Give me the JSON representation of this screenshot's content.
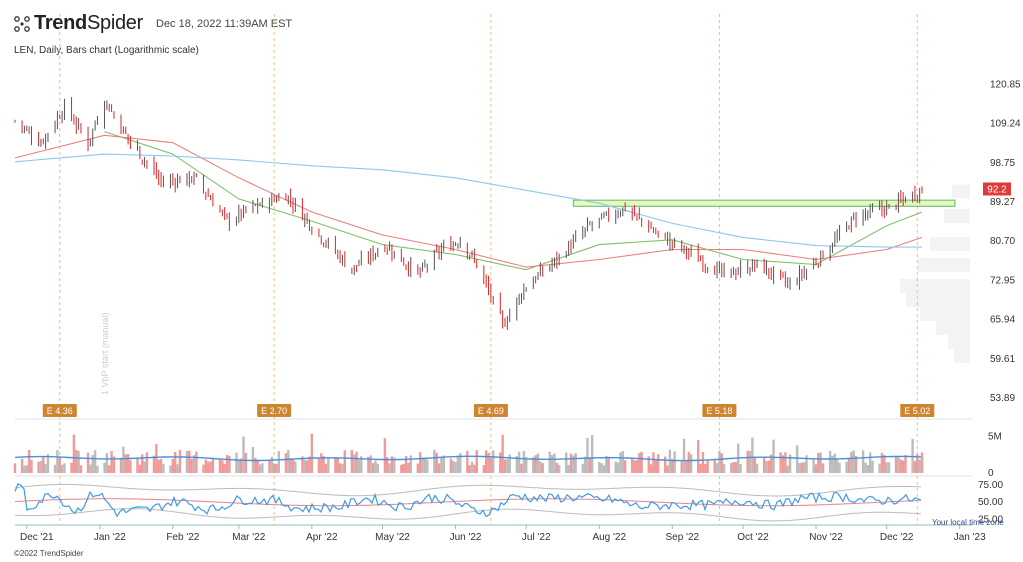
{
  "header": {
    "brand_bold": "Trend",
    "brand_light": "Spider",
    "timestamp": "Dec 18, 2022 11:39AM EST",
    "description": "LEN, Daily, Bars chart (Logarithmic scale)"
  },
  "footer": {
    "copyright": "©2022 TrendSpider",
    "local_time_note": "Your local time zone"
  },
  "colors": {
    "up": "#555555",
    "down": "#d62728",
    "sma_short": "#7fbf6a",
    "sma_mid": "#e88080",
    "sma_long": "#8cc8ee",
    "volume_up": "#bcbcbc",
    "volume_down": "#f09a9a",
    "volume_avg": "#4a90d9",
    "zone_fill": "#e9f7b8",
    "zone_border": "#55b87a",
    "earnings_badge": "#cd8530",
    "price_label": "#e03a3a"
  },
  "chart_data": {
    "type": "bar",
    "ticker": "LEN",
    "interval": "Daily",
    "scale": "log",
    "price_axis_ticks": [
      "120.85",
      "109.24",
      "98.75",
      "89.27",
      "80.70",
      "72.95",
      "65.94",
      "59.61",
      "53.89"
    ],
    "price_axis_values": [
      120.85,
      109.24,
      98.75,
      89.27,
      80.7,
      72.95,
      65.94,
      59.61,
      53.89
    ],
    "ylim": [
      52.0,
      128.0
    ],
    "last_price": "92.2",
    "months": [
      "Dec '21",
      "Jan '22",
      "Feb '22",
      "Mar '22",
      "Apr '22",
      "May '22",
      "Jun '22",
      "Jul '22",
      "Aug '22",
      "Sep '22",
      "Oct '22",
      "Nov '22",
      "Dec '22",
      "Jan '23"
    ],
    "price_path": [
      {
        "t": "Nov 26, 2021",
        "close": 110
      },
      {
        "t": "Dec 7, 2021",
        "close": 104
      },
      {
        "t": "Dec 17, 2021",
        "close": 114
      },
      {
        "t": "Dec 27, 2021",
        "close": 104
      },
      {
        "t": "Jan 3, 2022",
        "close": 116
      },
      {
        "t": "Jan 13, 2022",
        "close": 105
      },
      {
        "t": "Jan 27, 2022",
        "close": 94
      },
      {
        "t": "Feb 10, 2022",
        "close": 95
      },
      {
        "t": "Feb 24, 2022",
        "close": 85
      },
      {
        "t": "Mar 7, 2022",
        "close": 88
      },
      {
        "t": "Mar 21, 2022",
        "close": 91
      },
      {
        "t": "Apr 4, 2022",
        "close": 82
      },
      {
        "t": "Apr 18, 2022",
        "close": 75
      },
      {
        "t": "May 2, 2022",
        "close": 80
      },
      {
        "t": "May 16, 2022",
        "close": 74
      },
      {
        "t": "May 26, 2022",
        "close": 79
      },
      {
        "t": "Jun 3, 2022",
        "close": 81
      },
      {
        "t": "Jun 10, 2022",
        "close": 76
      },
      {
        "t": "Jun 21, 2022",
        "close": 65
      },
      {
        "t": "Jul 1, 2022",
        "close": 72
      },
      {
        "t": "Jul 14, 2022",
        "close": 77
      },
      {
        "t": "Jul 28, 2022",
        "close": 84
      },
      {
        "t": "Aug 12, 2022",
        "close": 88
      },
      {
        "t": "Aug 26, 2022",
        "close": 82
      },
      {
        "t": "Sep 9, 2022",
        "close": 78
      },
      {
        "t": "Sep 23, 2022",
        "close": 74
      },
      {
        "t": "Oct 7, 2022",
        "close": 76
      },
      {
        "t": "Oct 21, 2022",
        "close": 72
      },
      {
        "t": "Nov 4, 2022",
        "close": 78
      },
      {
        "t": "Nov 18, 2022",
        "close": 86
      },
      {
        "t": "Dec 2, 2022",
        "close": 88
      },
      {
        "t": "Dec 16, 2022",
        "close": 92.2
      }
    ],
    "moving_averages": [
      {
        "name": "short",
        "color": "#7fbf6a",
        "path": [
          {
            "t": "Jan 3, 2022",
            "value": 107
          },
          {
            "t": "Feb 1, 2022",
            "value": 101
          },
          {
            "t": "Mar 1, 2022",
            "value": 90
          },
          {
            "t": "Apr 1, 2022",
            "value": 85
          },
          {
            "t": "May 1, 2022",
            "value": 80
          },
          {
            "t": "Jun 1, 2022",
            "value": 78
          },
          {
            "t": "Jul 1, 2022",
            "value": 75
          },
          {
            "t": "Aug 1, 2022",
            "value": 80
          },
          {
            "t": "Sep 1, 2022",
            "value": 81
          },
          {
            "t": "Oct 1, 2022",
            "value": 77
          },
          {
            "t": "Nov 1, 2022",
            "value": 76
          },
          {
            "t": "Dec 1, 2022",
            "value": 84
          },
          {
            "t": "Dec 16, 2022",
            "value": 87
          }
        ]
      },
      {
        "name": "mid",
        "color": "#e88080",
        "path": [
          {
            "t": "Nov 26, 2021",
            "value": 100
          },
          {
            "t": "Jan 3, 2022",
            "value": 106
          },
          {
            "t": "Feb 1, 2022",
            "value": 104
          },
          {
            "t": "Mar 1, 2022",
            "value": 95
          },
          {
            "t": "Apr 1, 2022",
            "value": 87
          },
          {
            "t": "May 1, 2022",
            "value": 82
          },
          {
            "t": "Jun 1, 2022",
            "value": 79
          },
          {
            "t": "Jul 1, 2022",
            "value": 75.5
          },
          {
            "t": "Aug 1, 2022",
            "value": 77
          },
          {
            "t": "Sep 1, 2022",
            "value": 79
          },
          {
            "t": "Oct 1, 2022",
            "value": 79
          },
          {
            "t": "Nov 1, 2022",
            "value": 77
          },
          {
            "t": "Dec 1, 2022",
            "value": 79
          },
          {
            "t": "Dec 16, 2022",
            "value": 81.5
          }
        ]
      },
      {
        "name": "long",
        "color": "#8cc8ee",
        "path": [
          {
            "t": "Nov 26, 2021",
            "value": 99
          },
          {
            "t": "Jan 3, 2022",
            "value": 101
          },
          {
            "t": "Feb 1, 2022",
            "value": 100.5
          },
          {
            "t": "Mar 1, 2022",
            "value": 99.5
          },
          {
            "t": "Apr 1, 2022",
            "value": 98
          },
          {
            "t": "May 1, 2022",
            "value": 97
          },
          {
            "t": "Jun 1, 2022",
            "value": 95
          },
          {
            "t": "Jul 1, 2022",
            "value": 92
          },
          {
            "t": "Aug 1, 2022",
            "value": 89
          },
          {
            "t": "Sep 1, 2022",
            "value": 84.5
          },
          {
            "t": "Oct 1, 2022",
            "value": 81.5
          },
          {
            "t": "Nov 1, 2022",
            "value": 79.8
          },
          {
            "t": "Dec 1, 2022",
            "value": 79.5
          },
          {
            "t": "Dec 16, 2022",
            "value": 79.5
          }
        ]
      }
    ],
    "resistance_zone": {
      "from": "Jul 21, 2022",
      "to": "Dec 30, 2022",
      "low": 88.3,
      "high": 89.7
    },
    "earnings": [
      {
        "label": "E 4.36",
        "date": "Dec 15, 2021"
      },
      {
        "label": "E 2.70",
        "date": "Mar 16, 2022"
      },
      {
        "label": "E 4.69",
        "date": "Jun 16, 2022"
      },
      {
        "label": "E 5.18",
        "date": "Sep 21, 2022"
      },
      {
        "label": "E 5.02",
        "date": "Dec 14, 2022"
      }
    ],
    "volume_axis_ticks": [
      "5M",
      "0"
    ],
    "volume_axis_values": [
      5000000,
      0
    ],
    "volume_ylim": [
      0,
      7000000
    ],
    "volume_avg_level": 2000000,
    "oscillator_axis_ticks": [
      "75.00",
      "50.00",
      "25.00"
    ],
    "oscillator_axis_values": [
      75,
      50,
      25
    ],
    "oscillator_ylim": [
      20,
      85
    ],
    "vertical_note": "1 VbP start (manual)"
  }
}
